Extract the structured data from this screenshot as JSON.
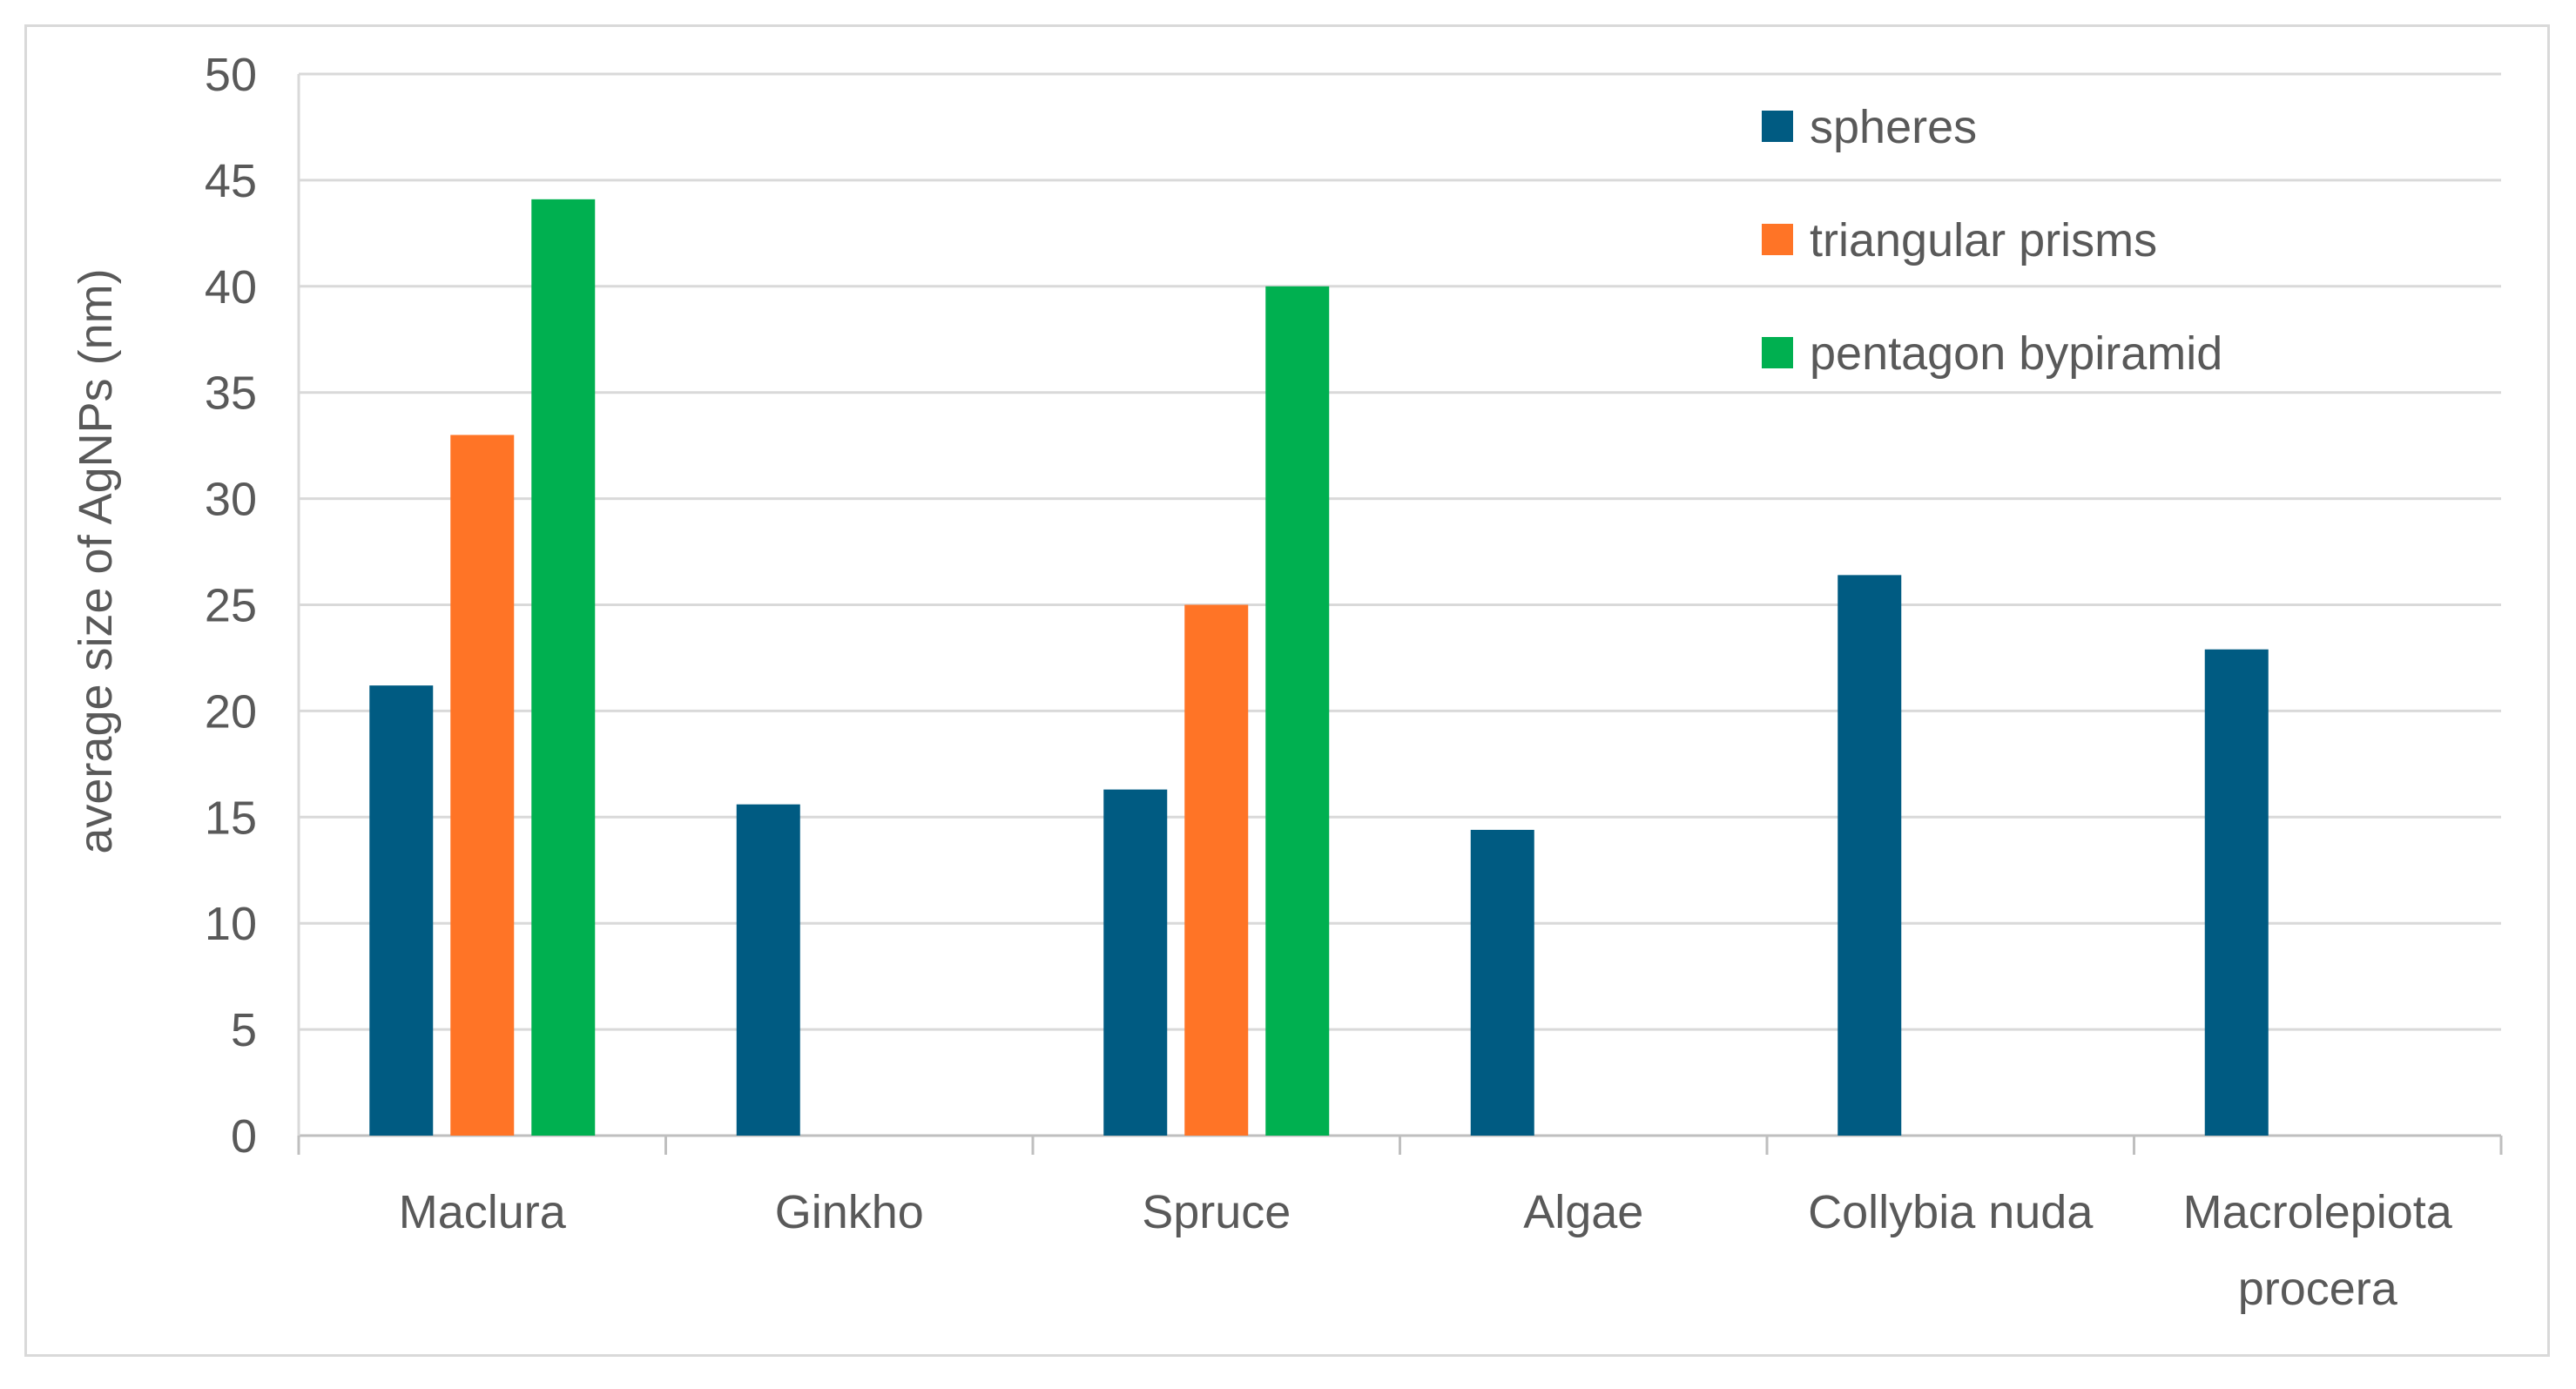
{
  "chart_data": {
    "type": "bar",
    "title": "",
    "xlabel": "",
    "ylabel": "average size of AgNPs (nm)",
    "ylim": [
      0,
      50
    ],
    "ytick_step": 5,
    "grid": true,
    "legend_position": "top-right",
    "categories": [
      [
        "Maclura"
      ],
      [
        "Ginkho"
      ],
      [
        "Spruce"
      ],
      [
        "Algae"
      ],
      [
        "Collybia nuda"
      ],
      [
        "Macrolepiota",
        "procera"
      ]
    ],
    "series": [
      {
        "name": "spheres",
        "color": "#005B82",
        "values": [
          21.2,
          15.6,
          16.3,
          14.4,
          26.4,
          22.9
        ]
      },
      {
        "name": "triangular prisms",
        "color": "#FF7426",
        "values": [
          33,
          null,
          25,
          null,
          null,
          null
        ]
      },
      {
        "name": "pentagon bypiramid",
        "color": "#00B050",
        "values": [
          44.1,
          null,
          40,
          null,
          null,
          null
        ]
      }
    ]
  }
}
